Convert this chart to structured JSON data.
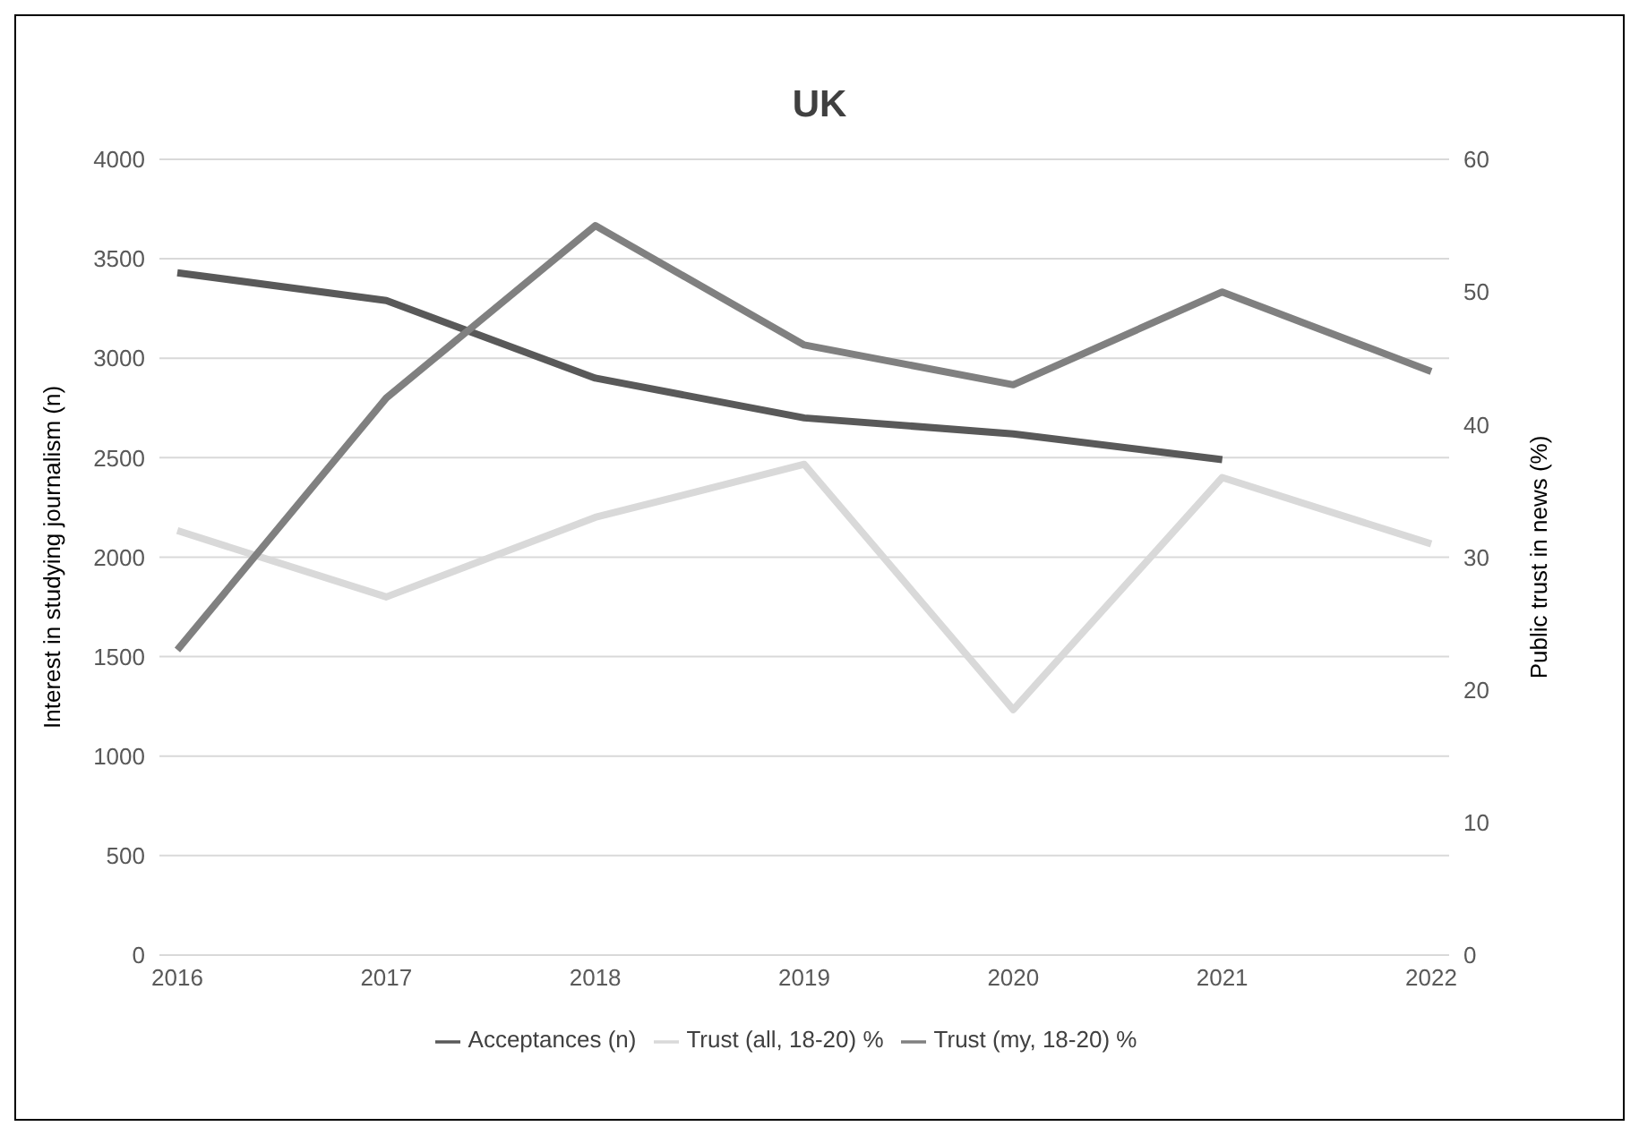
{
  "chart_data": {
    "type": "line",
    "title": "UK",
    "categories": [
      "2016",
      "2017",
      "2018",
      "2019",
      "2020",
      "2021",
      "2022"
    ],
    "series": [
      {
        "name": "Acceptances (n)",
        "color": "#595959",
        "values": [
          3430,
          3290,
          2900,
          2700,
          2620,
          2490,
          null
        ]
      },
      {
        "name": "Trust (all, 18-20) %",
        "color": "#d9d9d9",
        "values": [
          32,
          27,
          33,
          37,
          18.5,
          36,
          31
        ],
        "axis": "y2"
      },
      {
        "name": "Trust (my, 18-20) %",
        "color": "#808080",
        "values": [
          23,
          42,
          55,
          46,
          43,
          50,
          44
        ],
        "axis": "y2"
      }
    ],
    "ylabel": "Interest in studying journalism (n)",
    "y2label": "Public trust in news (%)",
    "ylim": [
      0,
      4000
    ],
    "yticks": [
      0,
      500,
      1000,
      1500,
      2000,
      2500,
      3000,
      3500,
      4000
    ],
    "y2lim": [
      0,
      60
    ],
    "y2ticks": [
      0,
      10,
      20,
      30,
      40,
      50,
      60
    ],
    "grid": "y",
    "legend": "bottom",
    "marker": "none",
    "line_style": "solid"
  }
}
